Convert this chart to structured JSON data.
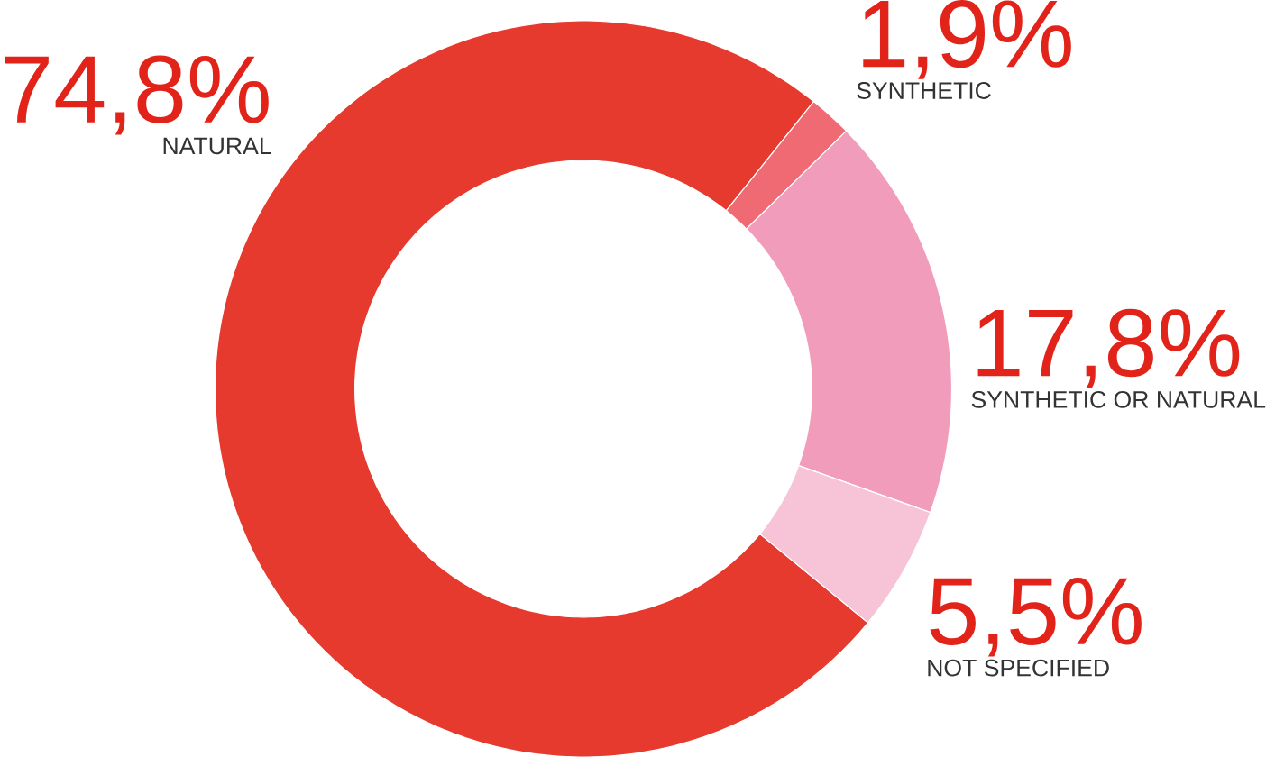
{
  "chart_data": {
    "type": "donut",
    "categories": [
      "NATURAL",
      "SYNTHETIC",
      "SYNTHETIC OR NATURAL",
      "NOT SPECIFIED"
    ],
    "values": [
      74.8,
      1.9,
      17.8,
      5.5
    ],
    "colors": [
      "#e63a2e",
      "#ef6a73",
      "#f29cbc",
      "#f7c3d7"
    ],
    "value_labels": [
      "74,8%",
      "1,9%",
      "17,8%",
      "5,5%"
    ]
  }
}
